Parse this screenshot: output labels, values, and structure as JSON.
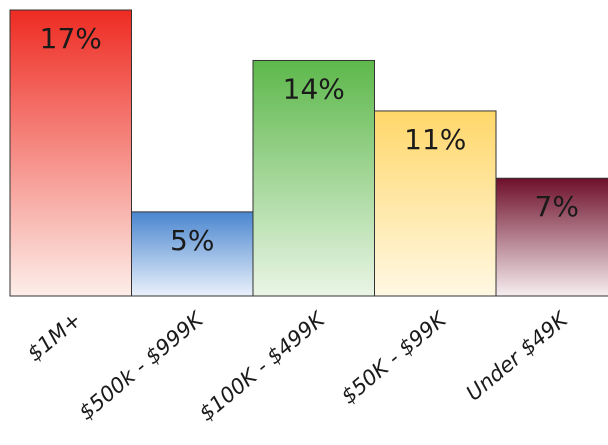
{
  "chart_data": {
    "type": "bar",
    "categories": [
      "$1M+",
      "$500k - $999K",
      "$100K - $499K",
      "$50K - $99K",
      "Under $49K"
    ],
    "values": [
      17,
      5,
      14,
      11,
      7
    ],
    "data_labels": [
      "17%",
      "5%",
      "14%",
      "11%",
      "7%"
    ],
    "ylim": [
      0,
      17
    ],
    "grid": false,
    "legend": "none",
    "colors": [
      {
        "top": "#ee2b22",
        "bottom": "#fdeee9"
      },
      {
        "top": "#4a86cf",
        "bottom": "#eaf1fb"
      },
      {
        "top": "#5db84b",
        "bottom": "#eaf5e6"
      },
      {
        "top": "#ffd76a",
        "bottom": "#fff8e3"
      },
      {
        "top": "#6e0f2b",
        "bottom": "#f6eef0"
      }
    ],
    "border_color": "#333333"
  }
}
